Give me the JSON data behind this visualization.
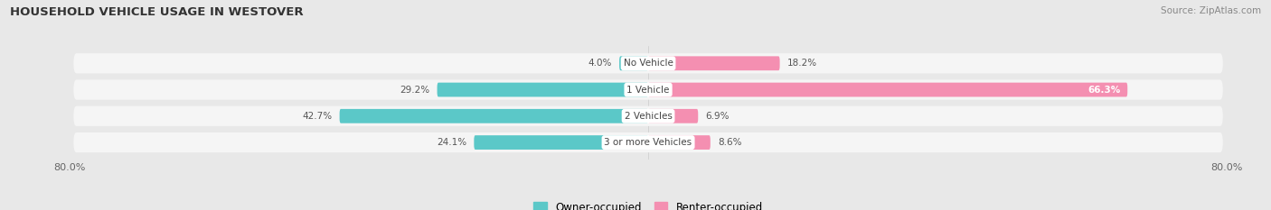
{
  "title": "HOUSEHOLD VEHICLE USAGE IN WESTOVER",
  "source": "Source: ZipAtlas.com",
  "categories": [
    "No Vehicle",
    "1 Vehicle",
    "2 Vehicles",
    "3 or more Vehicles"
  ],
  "owner_values": [
    4.0,
    29.2,
    42.7,
    24.1
  ],
  "renter_values": [
    18.2,
    66.3,
    6.9,
    8.6
  ],
  "owner_color": "#5bc8c8",
  "renter_color": "#f48fb1",
  "xlim": [
    -80,
    80
  ],
  "xticklabels_left": "80.0%",
  "xticklabels_right": "80.0%",
  "legend_owner": "Owner-occupied",
  "legend_renter": "Renter-occupied",
  "bar_height": 0.6,
  "figsize": [
    14.06,
    2.33
  ],
  "dpi": 100,
  "bg_color": "#e8e8e8",
  "row_color": "#f5f5f5"
}
